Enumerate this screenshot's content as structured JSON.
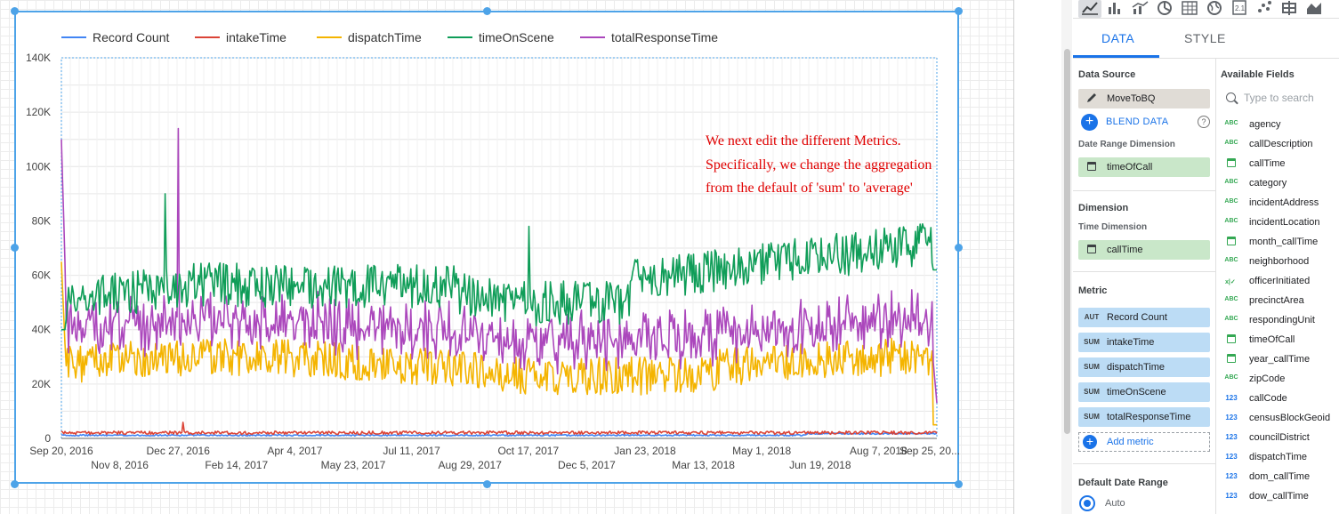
{
  "chart_data": {
    "type": "line",
    "series": [
      {
        "name": "Record Count",
        "color": "#4285f4"
      },
      {
        "name": "intakeTime",
        "color": "#db4437"
      },
      {
        "name": "dispatchTime",
        "color": "#f4b400"
      },
      {
        "name": "timeOnScene",
        "color": "#0f9d58"
      },
      {
        "name": "totalResponseTime",
        "color": "#ab47bc"
      }
    ],
    "y_ticks": [
      "0",
      "20K",
      "40K",
      "60K",
      "80K",
      "100K",
      "120K",
      "140K"
    ],
    "ylim": [
      0,
      140000
    ],
    "x_ticks_row1": [
      "Sep 20, 2016",
      "Dec 27, 2016",
      "Apr 4, 2017",
      "Jul 11, 2017",
      "Oct 17, 2017",
      "Jan 23, 2018",
      "May 1, 2018",
      "Aug 7, 2018",
      "Sep 25, 20..."
    ],
    "x_ticks_row2": [
      "Nov 8, 2016",
      "Feb 14, 2017",
      "May 23, 2017",
      "Aug 29, 2017",
      "Dec 5, 2017",
      "Mar 13, 2018",
      "Jun 19, 2018"
    ],
    "xlim": [
      "2016-09-20",
      "2018-09-25"
    ],
    "grid": true,
    "legend_position": "top-left",
    "trend_description": {
      "timeOnScene": "approx 40K-68K, rising to 60K-85K in mid/late 2018, spikes ~90K (Dec 2016) and ~78K (Oct 2017)",
      "totalResponseTime": "approx 25K-55K, spikes ~115K (Sep 2016 and Jan 2017)",
      "dispatchTime": "approx 15K-40K",
      "intakeTime": "approx 1K-3K, small spike ~5K (Jan 2017)",
      "Record Count": "approx 1K-2K"
    }
  },
  "annotation": {
    "line1": "We next edit the different Metrics.",
    "line2": "Specifically, we change the aggregation",
    "line3": "from the default of 'sum' to 'average'"
  },
  "panel": {
    "tabs": {
      "data": "DATA",
      "style": "STYLE"
    },
    "data_source": {
      "title": "Data Source",
      "name": "MoveToBQ",
      "blend_label": "BLEND DATA",
      "help": "?"
    },
    "date_range_dimension": {
      "title": "Date Range Dimension",
      "field": "timeOfCall"
    },
    "dimension": {
      "title": "Dimension",
      "time_title": "Time Dimension",
      "field": "callTime"
    },
    "metric": {
      "title": "Metric",
      "items": [
        {
          "agg": "AUT",
          "name": "Record Count"
        },
        {
          "agg": "SUM",
          "name": "intakeTime"
        },
        {
          "agg": "SUM",
          "name": "dispatchTime"
        },
        {
          "agg": "SUM",
          "name": "timeOnScene"
        },
        {
          "agg": "SUM",
          "name": "totalResponseTime"
        }
      ],
      "add_label": "Add metric"
    },
    "default_date_range": {
      "title": "Default Date Range",
      "option": "Auto"
    },
    "available_fields": {
      "title": "Available Fields",
      "search_placeholder": "Type to search",
      "items": [
        {
          "type": "ABC",
          "name": "agency"
        },
        {
          "type": "ABC",
          "name": "callDescription"
        },
        {
          "type": "date",
          "name": "callTime"
        },
        {
          "type": "ABC",
          "name": "category"
        },
        {
          "type": "ABC",
          "name": "incidentAddress"
        },
        {
          "type": "ABC",
          "name": "incidentLocation"
        },
        {
          "type": "date",
          "name": "month_callTime"
        },
        {
          "type": "ABC",
          "name": "neighborhood"
        },
        {
          "type": "bool",
          "name": "officerInitiated"
        },
        {
          "type": "ABC",
          "name": "precinctArea"
        },
        {
          "type": "ABC",
          "name": "respondingUnit"
        },
        {
          "type": "date",
          "name": "timeOfCall"
        },
        {
          "type": "date",
          "name": "year_callTime"
        },
        {
          "type": "ABC",
          "name": "zipCode"
        },
        {
          "type": "123",
          "name": "callCode"
        },
        {
          "type": "123",
          "name": "censusBlockGeoid"
        },
        {
          "type": "123",
          "name": "councilDistrict"
        },
        {
          "type": "123",
          "name": "dispatchTime"
        },
        {
          "type": "123",
          "name": "dom_callTime"
        },
        {
          "type": "123",
          "name": "dow_callTime"
        }
      ]
    }
  },
  "toolbar_icons": [
    "time-series-chart",
    "bar-chart",
    "combo-chart",
    "pie-chart",
    "table",
    "geo-map",
    "scorecard",
    "scatter-chart",
    "pivot-table",
    "area-chart"
  ]
}
